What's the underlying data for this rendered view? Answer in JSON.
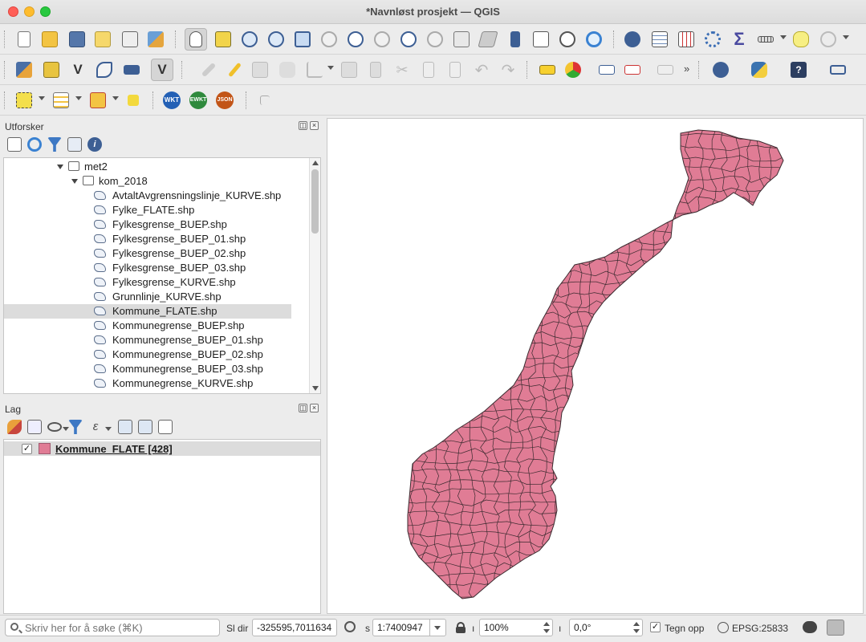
{
  "window": {
    "title": "*Navnløst prosjekt — QGIS"
  },
  "browser_panel": {
    "title": "Utforsker",
    "tree": [
      {
        "label": "met2",
        "type": "folder",
        "level": 0
      },
      {
        "label": "kom_2018",
        "type": "folder",
        "level": 1
      },
      {
        "label": "AvtaltAvgrensningslinje_KURVE.shp",
        "type": "shp",
        "level": 2
      },
      {
        "label": "Fylke_FLATE.shp",
        "type": "shp",
        "level": 2
      },
      {
        "label": "Fylkesgrense_BUEP.shp",
        "type": "shp",
        "level": 2
      },
      {
        "label": "Fylkesgrense_BUEP_01.shp",
        "type": "shp",
        "level": 2
      },
      {
        "label": "Fylkesgrense_BUEP_02.shp",
        "type": "shp",
        "level": 2
      },
      {
        "label": "Fylkesgrense_BUEP_03.shp",
        "type": "shp",
        "level": 2
      },
      {
        "label": "Fylkesgrense_KURVE.shp",
        "type": "shp",
        "level": 2
      },
      {
        "label": "Grunnlinje_KURVE.shp",
        "type": "shp",
        "level": 2
      },
      {
        "label": "Kommune_FLATE.shp",
        "type": "shp",
        "level": 2,
        "selected": true
      },
      {
        "label": "Kommunegrense_BUEP.shp",
        "type": "shp",
        "level": 2
      },
      {
        "label": "Kommunegrense_BUEP_01.shp",
        "type": "shp",
        "level": 2
      },
      {
        "label": "Kommunegrense_BUEP_02.shp",
        "type": "shp",
        "level": 2
      },
      {
        "label": "Kommunegrense_BUEP_03.shp",
        "type": "shp",
        "level": 2
      },
      {
        "label": "Kommunegrense_KURVE.shp",
        "type": "shp",
        "level": 2
      }
    ]
  },
  "layers_panel": {
    "title": "Lag",
    "layers": [
      {
        "name": "Kommune_FLATE [428]",
        "visible_mark": "✓",
        "color": "#e07c95"
      }
    ]
  },
  "statusbar": {
    "search_placeholder": "Skriv her for å søke (⌘K)",
    "coord_label": "Sl  dir",
    "coordinate": "-325595,7011634",
    "scale_label": "s",
    "scale": "1:7400947",
    "magnifier_label": "ı",
    "magnifier": "100%",
    "rotation_label": "ı",
    "rotation": "0,0°",
    "render_check": "✓",
    "render_label": "Tegn opp",
    "crs": "EPSG:25833"
  },
  "colors": {
    "fill": "#e07c95",
    "stroke": "#3b2a2f"
  },
  "icons": {
    "toolbar1": [
      "new-project-icon",
      "open-project-icon",
      "save-project-icon",
      "save-as-icon",
      "print-layout-icon",
      "style-manager-icon",
      "pan-icon",
      "pan-to-selection-icon",
      "zoom-in-icon",
      "zoom-out-icon",
      "zoom-full-icon",
      "zoom-to-selection-icon",
      "zoom-to-layer-icon",
      "zoom-native-icon",
      "zoom-last-icon",
      "zoom-next-icon",
      "new-map-view-icon",
      "new-3d-view-icon",
      "bookmark-icon",
      "show-bookmarks-icon",
      "temporal-controller-icon",
      "refresh-icon",
      "identify-icon",
      "attribute-table-icon",
      "field-calculator-icon",
      "processing-toolbox-icon",
      "statistics-icon",
      "measure-icon",
      "annotation-icon",
      "map-tips-icon"
    ],
    "toolbar2": [
      "data-source-manager-icon",
      "new-geopackage-icon",
      "new-shapefile-icon",
      "digitize-icon",
      "new-virtual-layer-icon",
      "layer-diagram-icon",
      "current-edits-icon",
      "toggle-editing-icon",
      "save-edits-icon",
      "add-feature-icon",
      "vertex-tool-icon",
      "modify-attributes-icon",
      "delete-selected-icon",
      "cut-icon",
      "copy-icon",
      "paste-icon",
      "undo-icon",
      "redo-icon",
      "label-abc-icon",
      "layer-labeling-icon",
      "pin-label-icon",
      "highlight-label-icon",
      "move-label-icon",
      "plugin-globe-icon",
      "python-console-icon",
      "help-icon",
      "network-plugin-icon"
    ],
    "toolbar3": [
      "select-features-icon",
      "select-by-value-icon",
      "deselect-icon",
      "select-by-location-icon",
      "wkt-icon",
      "ewkt-icon",
      "json-icon",
      "identify-tool-icon"
    ]
  }
}
